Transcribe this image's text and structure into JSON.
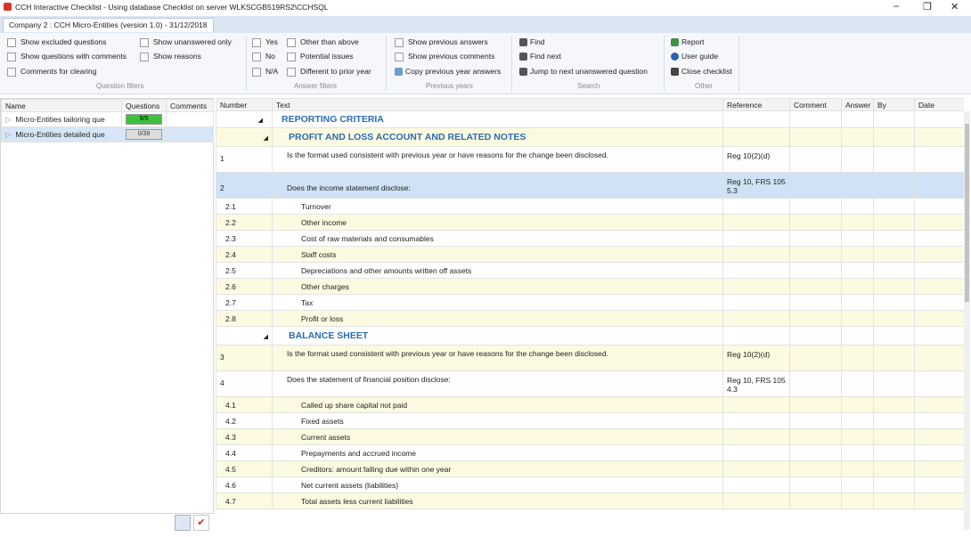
{
  "window": {
    "title": "CCH Interactive Checklist - Using database Checklist on server WLKSCGB519RS2\\CCHSQL"
  },
  "tab": "Company 2 : CCH Micro-Entities  (version 1.0) - 31/12/2018",
  "ribbon": {
    "question_filters": {
      "label": "Question filters",
      "items": [
        "Show excluded questions",
        "Show questions with comments",
        "Comments for clearing",
        "Show unanswered only",
        "Show reasons"
      ]
    },
    "answer_filters": {
      "label": "Answer filters",
      "items": [
        "Yes",
        "No",
        "N/A",
        "Other than above",
        "Potential issues",
        "Different to prior year"
      ]
    },
    "previous_years": {
      "label": "Previous years",
      "items": [
        "Show previous answers",
        "Show previous comments",
        "Copy previous year answers"
      ]
    },
    "search": {
      "label": "Search",
      "items": [
        "Find",
        "Find next",
        "Jump to next unanswered question"
      ]
    },
    "other": {
      "label": "Other",
      "items": [
        "Report",
        "User guide",
        "Close checklist"
      ]
    }
  },
  "left_panel": {
    "columns": [
      "Name",
      "Questions",
      "Comments"
    ],
    "rows": [
      {
        "name": "Micro-Entities tailoring que",
        "questions": "5/5"
      },
      {
        "name": "Micro-Entities detailed que",
        "questions": "0/39"
      }
    ]
  },
  "table": {
    "columns": [
      "Number",
      "Text",
      "Reference",
      "Comment",
      "Answer",
      "By",
      "Date"
    ],
    "sections": [
      {
        "title": "REPORTING CRITERIA",
        "sections": [
          {
            "title": "PROFIT AND LOSS ACCOUNT AND RELATED NOTES",
            "rows": [
              {
                "number": "1",
                "text": "Is the format used consistent with previous year or have reasons for the change been disclosed.",
                "reference": "Reg 10(2)(d)"
              },
              {
                "number": "2",
                "text": "Does the income statement disclose:",
                "reference": "Reg 10, FRS 105 5.3"
              },
              {
                "number": "2.1",
                "text": "Turnover"
              },
              {
                "number": "2.2",
                "text": "Other income"
              },
              {
                "number": "2.3",
                "text": "Cost of raw materials and consumables"
              },
              {
                "number": "2.4",
                "text": "Staff costs"
              },
              {
                "number": "2.5",
                "text": "Depreciations and other amounts written off assets"
              },
              {
                "number": "2.6",
                "text": "Other charges"
              },
              {
                "number": "2.7",
                "text": "Tax"
              },
              {
                "number": "2.8",
                "text": "Profit or loss"
              }
            ]
          },
          {
            "title": "BALANCE SHEET",
            "rows": [
              {
                "number": "3",
                "text": "Is the format used consistent with previous year or have reasons for the change been disclosed.",
                "reference": "Reg 10(2)(d)"
              },
              {
                "number": "4",
                "text": "Does the statement of financial position disclose:",
                "reference": "Reg 10, FRS 105 4.3"
              },
              {
                "number": "4.1",
                "text": "Called up share capital not paid"
              },
              {
                "number": "4.2",
                "text": "Fixed assets"
              },
              {
                "number": "4.3",
                "text": "Current assets"
              },
              {
                "number": "4.4",
                "text": "Prepayments and accrued income"
              },
              {
                "number": "4.5",
                "text": "Creditors: amount falling due within one year"
              },
              {
                "number": "4.6",
                "text": "Net current assets (liabilities)"
              },
              {
                "number": "4.7",
                "text": "Total assets less current liabilities"
              }
            ]
          }
        ]
      }
    ]
  }
}
